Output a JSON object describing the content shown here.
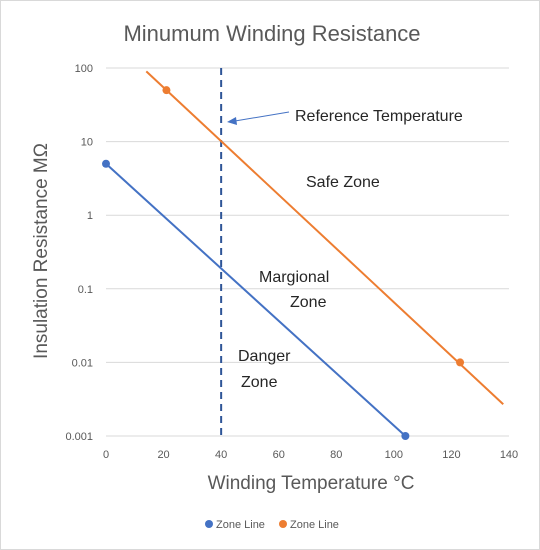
{
  "chart_data": {
    "type": "scatter",
    "title": "Minumum Winding Resistance",
    "xlabel": "Winding Temperature °C",
    "ylabel": "Insulation Resistance MΩ",
    "xlim": [
      0,
      140
    ],
    "ylim": [
      0.001,
      100
    ],
    "yscale": "log",
    "grid": "horizontal",
    "legend_position": "bottom",
    "x_ticks": [
      "0",
      "20",
      "40",
      "60",
      "80",
      "100",
      "120",
      "140"
    ],
    "y_ticks": [
      "0.001",
      "0.01",
      "0.1",
      "1",
      "10",
      "100"
    ],
    "series": [
      {
        "name": "Zone Line",
        "color": "#4472c4",
        "points": [
          {
            "x": 0,
            "y": 5
          },
          {
            "x": 104,
            "y": 0.001
          }
        ],
        "trendline": [
          {
            "x": 0,
            "y": 5
          },
          {
            "x": 104,
            "y": 0.001
          }
        ]
      },
      {
        "name": "Zone Line",
        "color": "#ed7d31",
        "points": [
          {
            "x": 21,
            "y": 50
          },
          {
            "x": 123,
            "y": 0.01
          }
        ],
        "trendline": [
          {
            "x": 14,
            "y": 90
          },
          {
            "x": 138,
            "y": 0.0027
          }
        ]
      }
    ],
    "reference_line": {
      "x": 40,
      "color": "#2e5597"
    },
    "annotations": {
      "reference": "Reference Temperature",
      "safe": "Safe Zone",
      "marginal_1": "Margional",
      "marginal_2": "Zone",
      "danger_1": "Danger",
      "danger_2": "Zone"
    }
  }
}
